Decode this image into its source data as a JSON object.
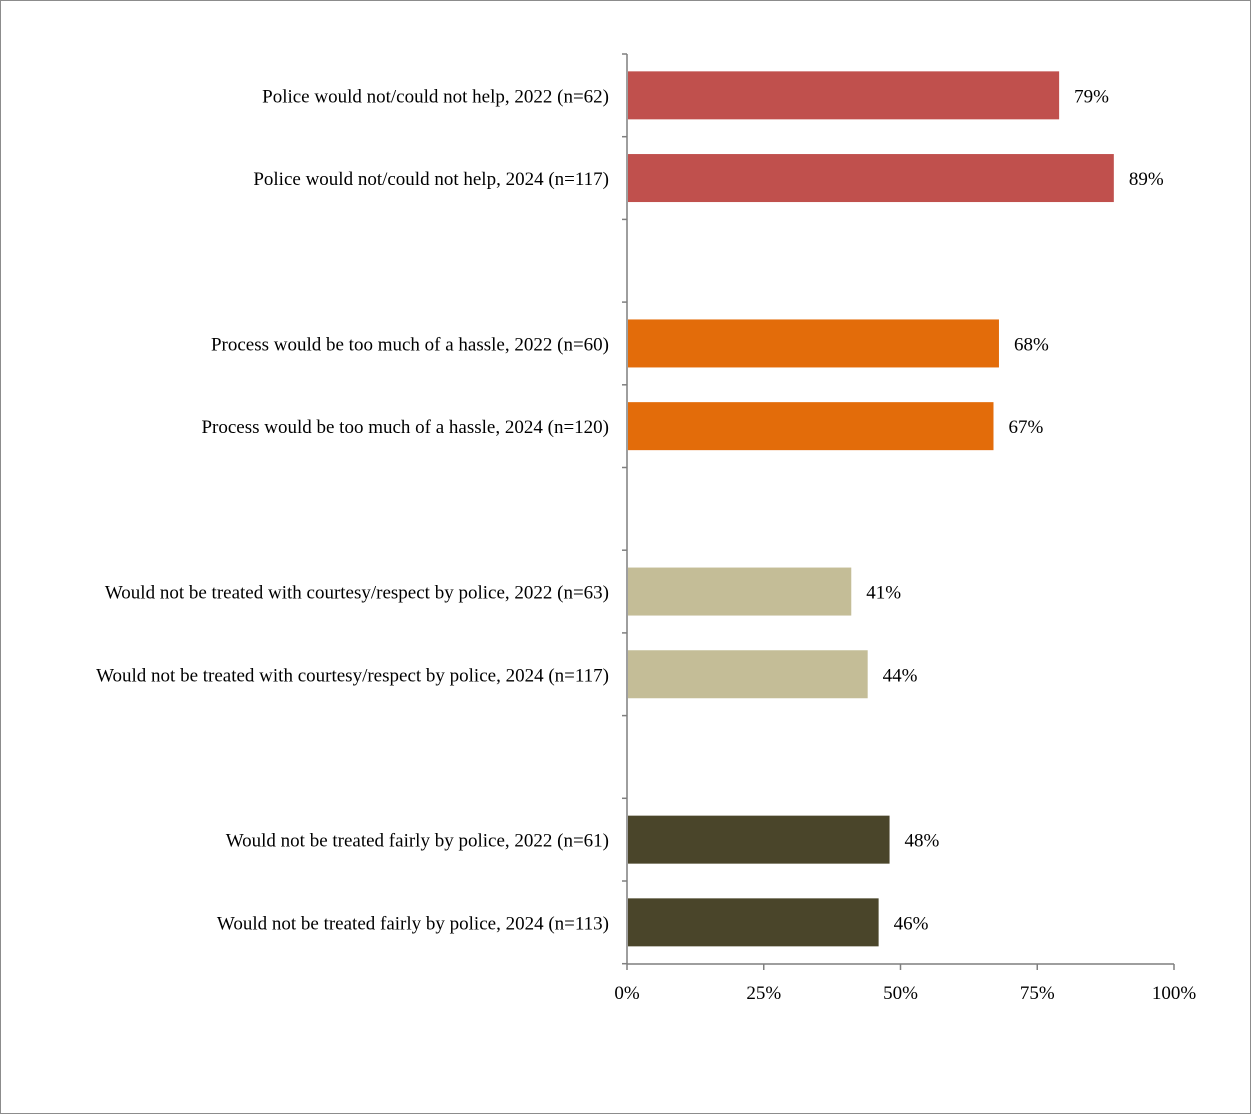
{
  "chart_data": {
    "type": "bar",
    "orientation": "horizontal",
    "title": "",
    "xlabel": "",
    "ylabel": "",
    "xlim": [
      0,
      100
    ],
    "x_ticks": [
      "0%",
      "25%",
      "50%",
      "75%",
      "100%"
    ],
    "grid": false,
    "legend": "none",
    "groups": [
      {
        "color": "#c0504d",
        "bars": [
          {
            "label": "Police would not/could not help, 2022 (n=62)",
            "value": 79,
            "value_label": "79%"
          },
          {
            "label": "Police would not/could not help, 2024 (n=117)",
            "value": 89,
            "value_label": "89%"
          }
        ]
      },
      {
        "color": "#e36c0a",
        "bars": [
          {
            "label": "Process would be too much of a hassle, 2022 (n=60)",
            "value": 68,
            "value_label": "68%"
          },
          {
            "label": "Process would be too much of a hassle, 2024 (n=120)",
            "value": 67,
            "value_label": "67%"
          }
        ]
      },
      {
        "color": "#c4bd97",
        "bars": [
          {
            "label": "Would not be treated with courtesy/respect by police, 2022 (n=63)",
            "value": 41,
            "value_label": "41%"
          },
          {
            "label": "Would not be treated with courtesy/respect by police, 2024 (n=117)",
            "value": 44,
            "value_label": "44%"
          }
        ]
      },
      {
        "color": "#4a452a",
        "bars": [
          {
            "label": "Would not be treated fairly by police, 2022 (n=61)",
            "value": 48,
            "value_label": "48%"
          },
          {
            "label": "Would not be treated fairly by police, 2024 (n=113)",
            "value": 46,
            "value_label": "46%"
          }
        ]
      }
    ]
  }
}
